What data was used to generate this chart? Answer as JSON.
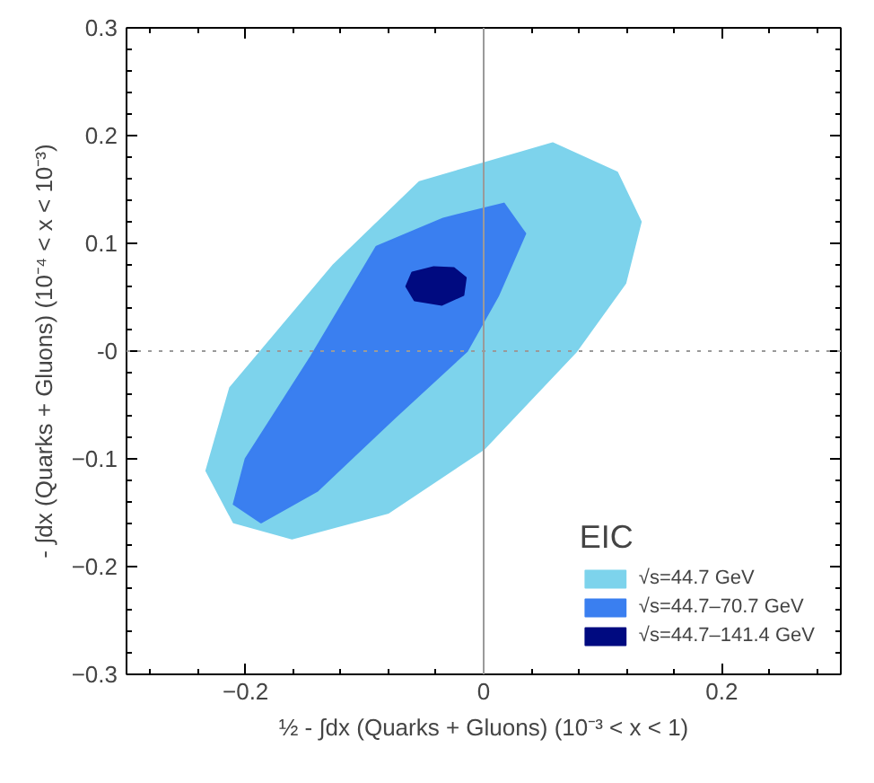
{
  "chart_data": {
    "type": "area",
    "xlabel": "½ - ∫dx (Quarks + Gluons) (10⁻³ < x < 1)",
    "ylabel": "- ∫dx (Quarks + Gluons) (10⁻⁴ < x < 10⁻³)",
    "legend_title": "EIC",
    "xlim": [
      -0.3,
      0.3
    ],
    "xticks": [
      -0.2,
      0,
      0.2
    ],
    "ylim": [
      -0.3,
      0.3
    ],
    "yticks": [
      -0.3,
      -0.2,
      -0.1,
      {
        "value": 0,
        "label": "-0"
      },
      0.1,
      0.2,
      0.3
    ],
    "grid": false,
    "legend": "bottom right",
    "ref_lines": [
      {
        "axis": "x",
        "value": 0,
        "color": "#9a9a9a",
        "line_style": "solid"
      },
      {
        "axis": "y",
        "value": 0,
        "color": "#9a9a9a",
        "line_style": "dotted"
      }
    ],
    "series": [
      {
        "name": "√s=44.7 GeV",
        "color": "#7dd3ec",
        "x": [
          0.058,
          0.112,
          0.132,
          0.119,
          0.078,
          0.0,
          -0.08,
          -0.161,
          -0.21,
          -0.233,
          -0.213,
          -0.126,
          -0.054
        ],
        "values": [
          0.193,
          0.166,
          0.12,
          0.063,
          0.0,
          -0.091,
          -0.15,
          -0.174,
          -0.159,
          -0.111,
          -0.034,
          0.08,
          0.157
        ]
      },
      {
        "name": "√s=44.7–70.7 GeV",
        "color": "#3a7ff0",
        "x": [
          0.017,
          0.035,
          0.012,
          -0.014,
          -0.075,
          -0.14,
          -0.187,
          -0.21,
          -0.2,
          -0.145,
          -0.09,
          -0.034
        ],
        "values": [
          0.137,
          0.109,
          0.051,
          0.0,
          -0.062,
          -0.13,
          -0.159,
          -0.142,
          -0.1,
          -0.005,
          0.097,
          0.123
        ]
      },
      {
        "name": "√s=44.7–141.4 GeV",
        "color": "#000a80",
        "x": [
          -0.025,
          -0.015,
          -0.017,
          -0.035,
          -0.058,
          -0.065,
          -0.06,
          -0.042
        ],
        "values": [
          0.077,
          0.068,
          0.052,
          0.043,
          0.047,
          0.06,
          0.073,
          0.078
        ]
      }
    ]
  }
}
